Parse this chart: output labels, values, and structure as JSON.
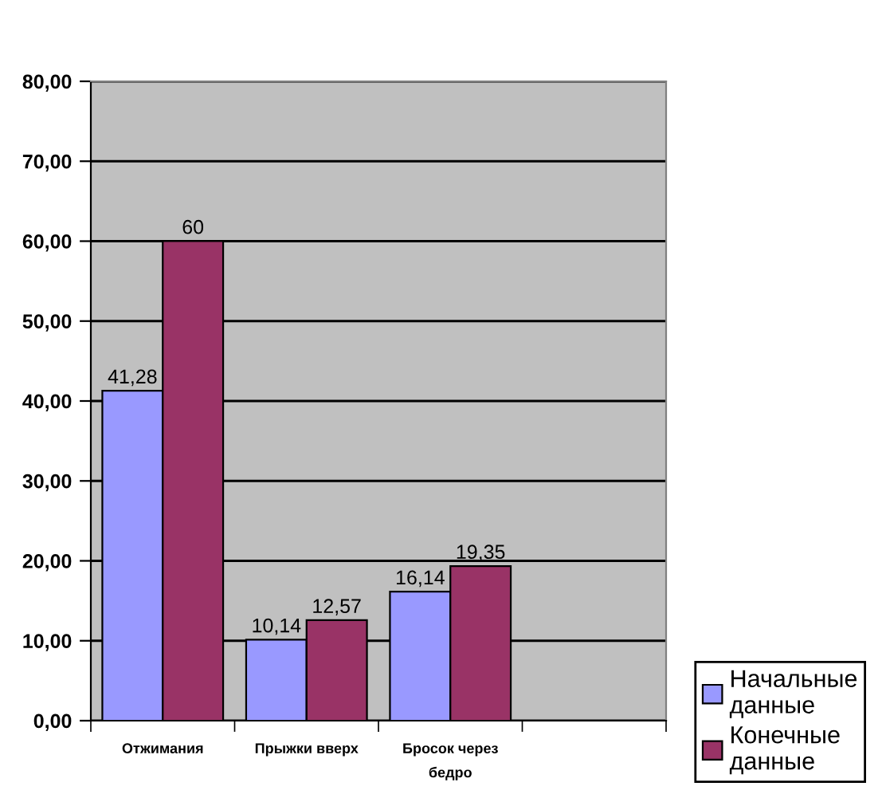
{
  "chart_data": {
    "type": "bar",
    "categories": [
      "Отжимания",
      "Прыжки вверх",
      "Бросок через\nбедро",
      null
    ],
    "series": [
      {
        "name": "Начальные\nданные",
        "color": "#9999ff",
        "values": [
          41.28,
          10.14,
          16.14,
          null
        ],
        "value_labels": [
          "41,28",
          "10,14",
          "16,14",
          null
        ]
      },
      {
        "name": "Конечные\nданные",
        "color": "#993366",
        "values": [
          60,
          12.57,
          19.35,
          null
        ],
        "value_labels": [
          "60",
          "12,57",
          "19,35",
          null
        ]
      }
    ],
    "ylim": [
      0,
      80
    ],
    "yticks": [
      {
        "value": 0,
        "label": "0,00"
      },
      {
        "value": 10,
        "label": "10,00"
      },
      {
        "value": 20,
        "label": "20,00"
      },
      {
        "value": 30,
        "label": "30,00"
      },
      {
        "value": 40,
        "label": "40,00"
      },
      {
        "value": 50,
        "label": "50,00"
      },
      {
        "value": 60,
        "label": "60,00"
      },
      {
        "value": 70,
        "label": "70,00"
      },
      {
        "value": 80,
        "label": "80,00"
      }
    ],
    "grid": "y",
    "legend": "bottom right"
  }
}
